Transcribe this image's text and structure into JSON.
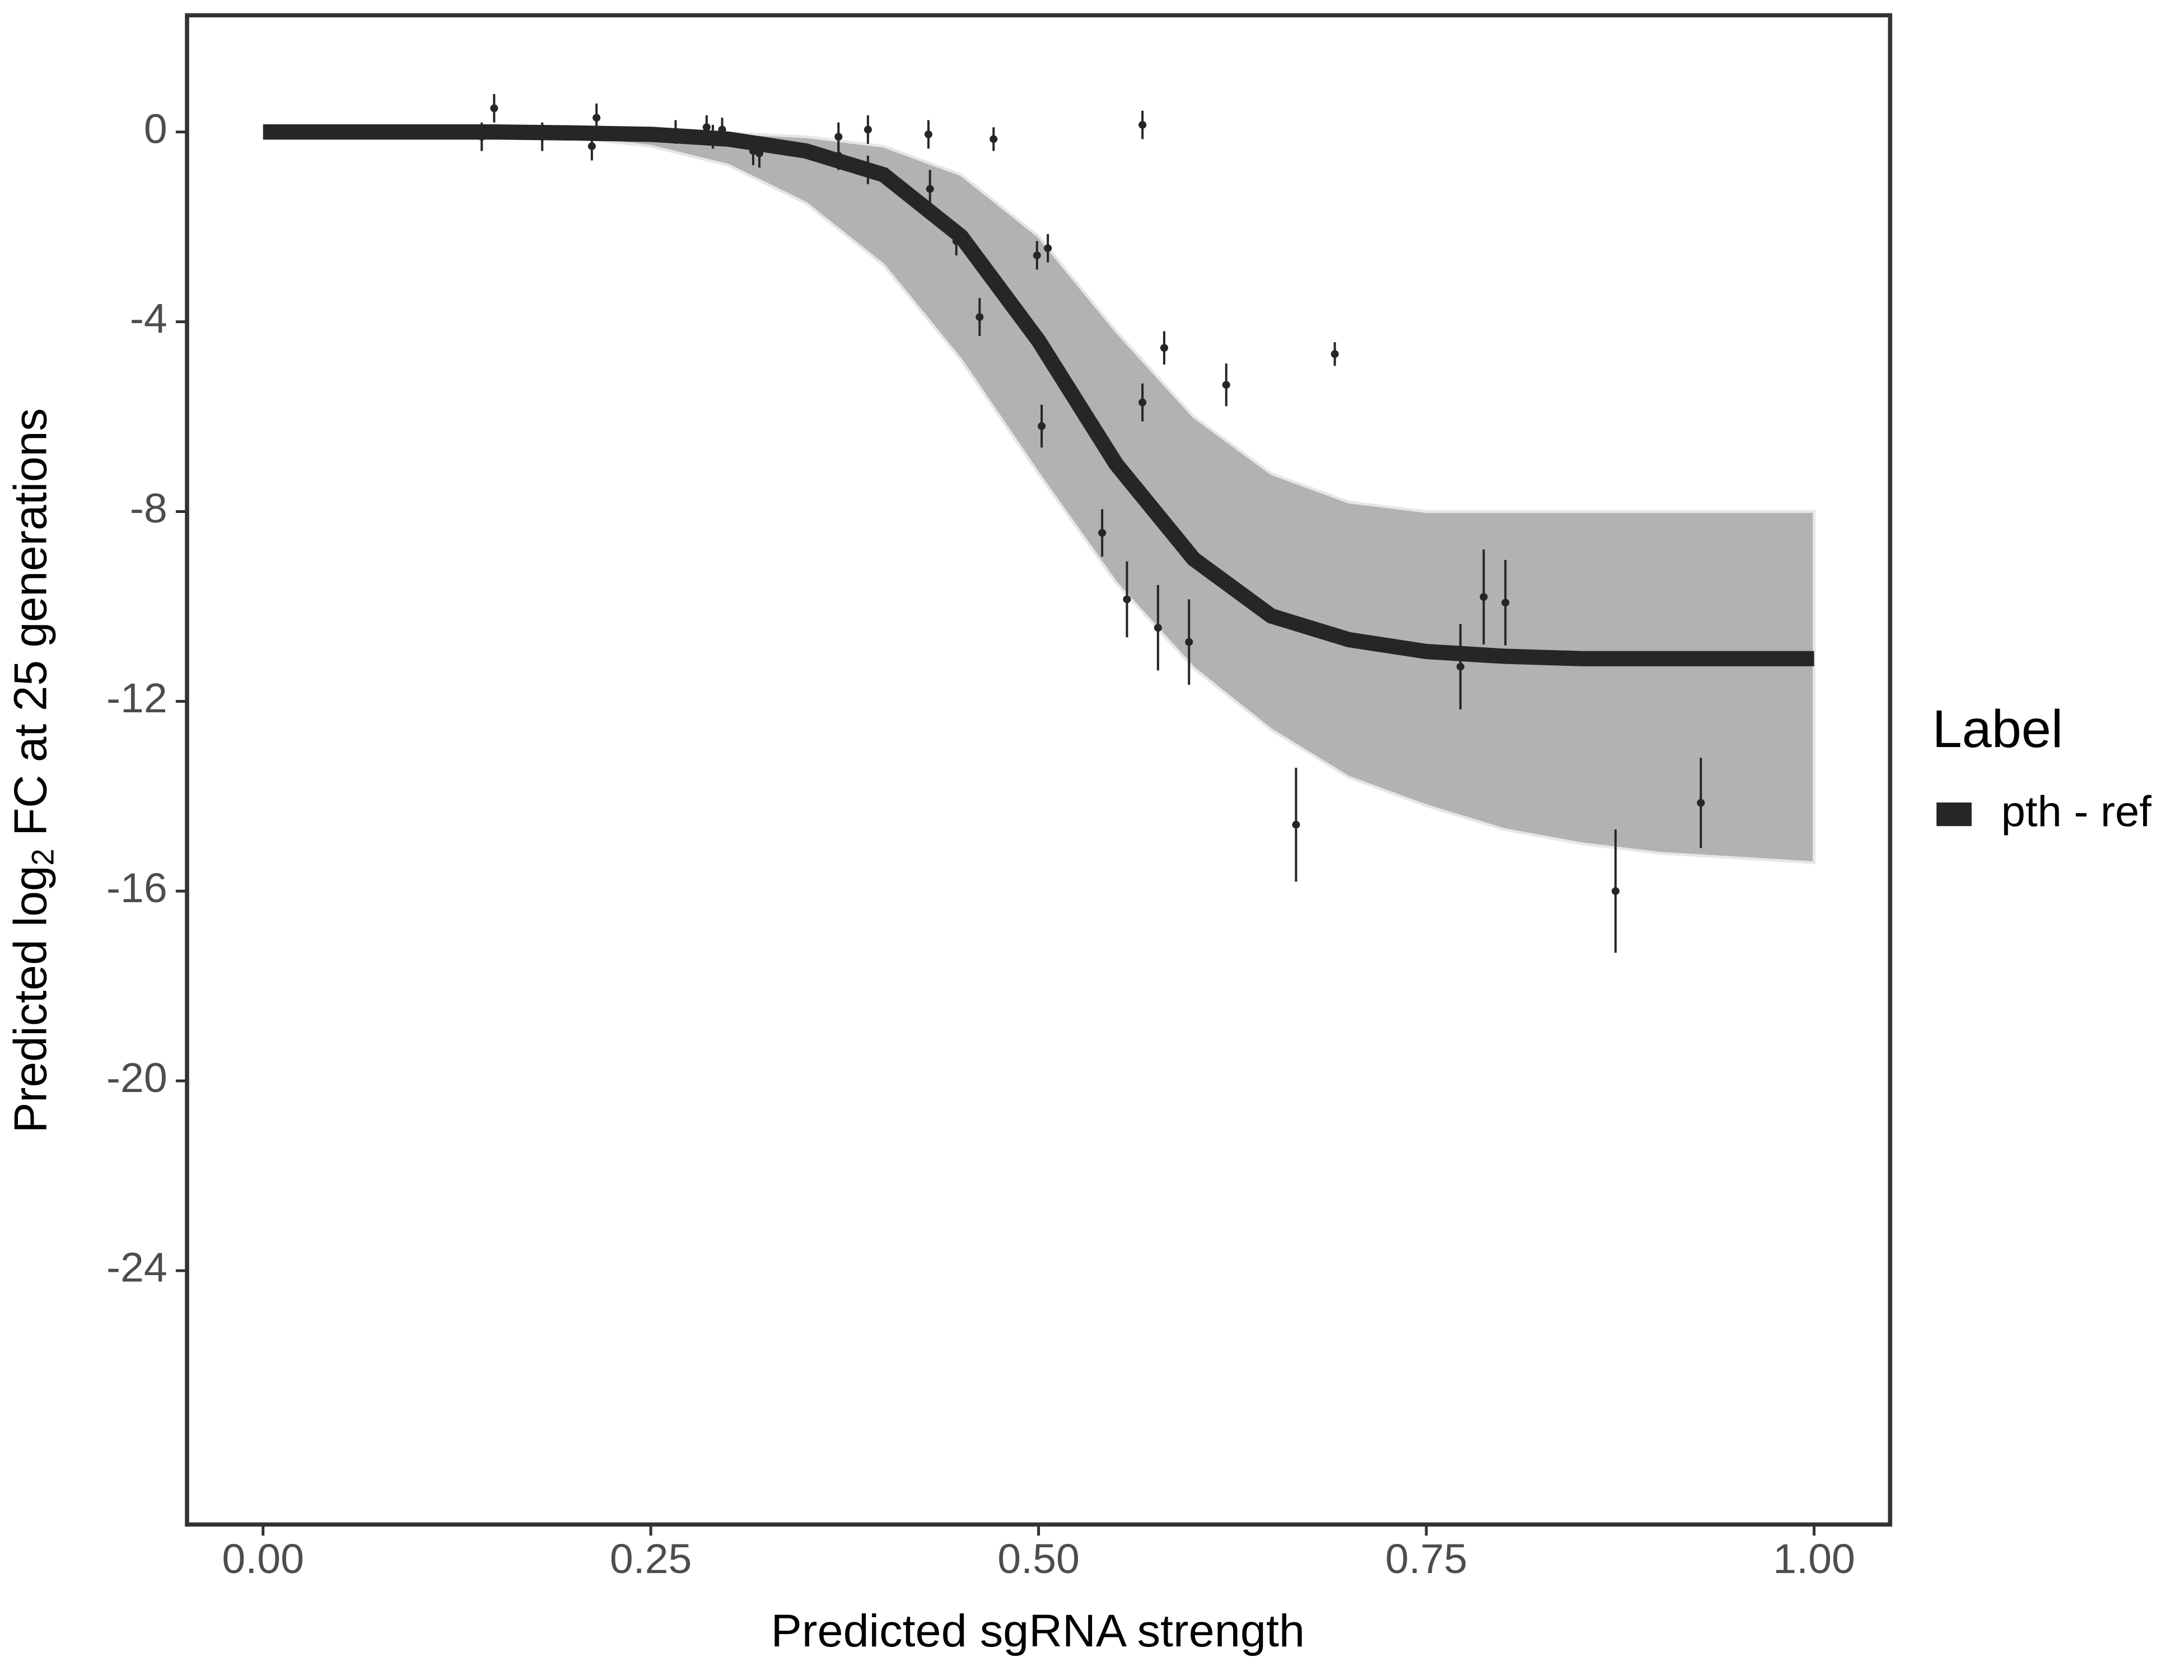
{
  "chart_data": {
    "type": "line",
    "x_label": "Predicted sgRNA strength",
    "y_label": [
      "Predicted  log",
      "2",
      " FC at 25 generations"
    ],
    "legend_title": "Label",
    "legend_position": "right",
    "xlim": [
      -0.049,
      1.049
    ],
    "ylim": [
      -29.35,
      2.46
    ],
    "xticks": [
      {
        "value": 0,
        "label": "0.00"
      },
      {
        "value": 0.25,
        "label": "0.25"
      },
      {
        "value": 0.5,
        "label": "0.50"
      },
      {
        "value": 0.75,
        "label": "0.75"
      },
      {
        "value": 1,
        "label": "1.00"
      }
    ],
    "yticks": [
      0,
      -4,
      -8,
      -12,
      -16,
      -20,
      -24
    ],
    "grid": false,
    "series": [
      {
        "name": "pth - ref",
        "color": "#262626",
        "x": [
          0,
          0.05,
          0.1,
          0.15,
          0.2,
          0.25,
          0.3,
          0.35,
          0.4,
          0.45,
          0.5,
          0.55,
          0.6,
          0.65,
          0.7,
          0.75,
          0.8,
          0.85,
          0.9,
          0.95,
          1
        ],
        "values": [
          0,
          0,
          0,
          0,
          -0.02,
          -0.05,
          -0.15,
          -0.4,
          -0.9,
          -2.2,
          -4.4,
          -7.0,
          -9.0,
          -10.2,
          -10.7,
          -10.95,
          -11.05,
          -11.1,
          -11.1,
          -11.1,
          -11.1
        ]
      }
    ],
    "band": {
      "color": "#aaaaaa",
      "x": [
        0,
        0.05,
        0.1,
        0.15,
        0.2,
        0.25,
        0.3,
        0.35,
        0.4,
        0.45,
        0.5,
        0.55,
        0.6,
        0.65,
        0.7,
        0.75,
        0.8,
        0.85,
        0.9,
        0.95,
        1
      ],
      "upper": [
        0,
        0,
        0,
        0,
        0,
        0,
        -0.02,
        -0.1,
        -0.3,
        -0.9,
        -2.2,
        -4.2,
        -6.0,
        -7.2,
        -7.8,
        -8.0,
        -8.0,
        -8.0,
        -8.0,
        -8.0,
        -8.0
      ],
      "lower": [
        0,
        0,
        -0.02,
        -0.05,
        -0.12,
        -0.3,
        -0.7,
        -1.5,
        -2.8,
        -4.8,
        -7.2,
        -9.5,
        -11.3,
        -12.6,
        -13.6,
        -14.2,
        -14.7,
        -15.0,
        -15.2,
        -15.3,
        -15.4
      ]
    },
    "points": {
      "color": "#262626",
      "x": [
        0.141,
        0.149,
        0.18,
        0.212,
        0.215,
        0.266,
        0.286,
        0.29,
        0.296,
        0.316,
        0.32,
        0.371,
        0.371,
        0.39,
        0.39,
        0.429,
        0.43,
        0.447,
        0.462,
        0.471,
        0.499,
        0.502,
        0.506,
        0.541,
        0.557,
        0.567,
        0.567,
        0.577,
        0.581,
        0.597,
        0.621,
        0.666,
        0.691,
        0.772,
        0.787,
        0.801,
        0.872,
        0.927
      ],
      "values": [
        -0.1,
        0.5,
        -0.1,
        -0.3,
        0.3,
        0,
        0.1,
        -0.1,
        0.05,
        -0.4,
        -0.45,
        -0.1,
        -0.5,
        0.05,
        -0.8,
        -0.05,
        -1.2,
        -2.3,
        -3.9,
        -0.15,
        -2.6,
        -6.2,
        -2.45,
        -8.45,
        -9.85,
        0.15,
        -5.7,
        -10.45,
        -4.55,
        -10.75,
        -5.33,
        -14.6,
        -4.68,
        -11.27,
        -9.8,
        -9.92,
        -16.0,
        -14.14
      ],
      "errors": [
        0.3,
        0.3,
        0.3,
        0.3,
        0.3,
        0.25,
        0.25,
        0.25,
        0.25,
        0.3,
        0.3,
        0.3,
        0.3,
        0.3,
        0.3,
        0.3,
        0.4,
        0.3,
        0.4,
        0.25,
        0.3,
        0.45,
        0.3,
        0.5,
        0.8,
        0.3,
        0.4,
        0.9,
        0.35,
        0.9,
        0.45,
        1.2,
        0.25,
        0.9,
        1.0,
        0.9,
        1.3,
        0.95
      ]
    }
  }
}
